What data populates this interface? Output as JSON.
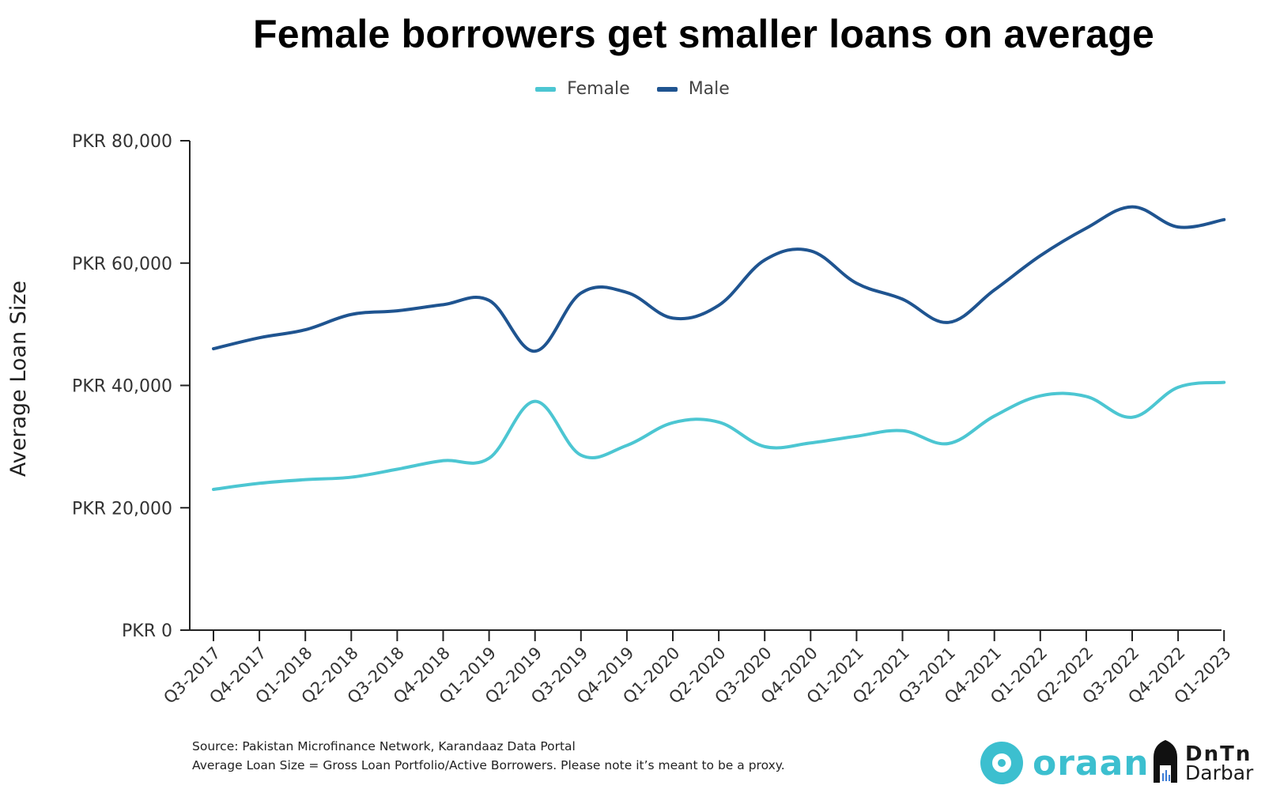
{
  "title": "Female borrowers get smaller loans on average",
  "legend": [
    {
      "label": "Female",
      "color": "#4cc6d2"
    },
    {
      "label": "Male",
      "color": "#1f5490"
    }
  ],
  "footnote": {
    "line1": "Source:  Pakistan Microfinance Network, Karandaaz Data Portal",
    "line2": "Average Loan Size = Gross Loan Portfolio/Active Borrowers. Please note it’s meant to be a proxy."
  },
  "logos": {
    "oraan": "oraan",
    "darbar_top": "DnTn",
    "darbar_bottom": "Darbar"
  },
  "chart_data": {
    "type": "line",
    "title": "Female borrowers get smaller loans on average",
    "xlabel": "",
    "ylabel": "Average Loan Size",
    "ylim": [
      0,
      80000
    ],
    "yticks": [
      0,
      20000,
      40000,
      60000,
      80000
    ],
    "ytick_labels": [
      "PKR 0",
      "PKR 20,000",
      "PKR 40,000",
      "PKR 60,000",
      "PKR 80,000"
    ],
    "legend_position": "top-center",
    "grid": false,
    "categories": [
      "Q3-2017",
      "Q4-2017",
      "Q1-2018",
      "Q2-2018",
      "Q3-2018",
      "Q4-2018",
      "Q1-2019",
      "Q2-2019",
      "Q3-2019",
      "Q4-2019",
      "Q1-2020",
      "Q2-2020",
      "Q3-2020",
      "Q4-2020",
      "Q1-2021",
      "Q2-2021",
      "Q3-2021",
      "Q4-2021",
      "Q1-2022",
      "Q2-2022",
      "Q3-2022",
      "Q4-2022",
      "Q1-2023"
    ],
    "series": [
      {
        "name": "Female",
        "color": "#4cc6d2",
        "values": [
          23000,
          24000,
          24600,
          25000,
          26300,
          27700,
          28100,
          37400,
          28600,
          30200,
          33900,
          34000,
          30000,
          30600,
          31700,
          32600,
          30500,
          35000,
          38300,
          38200,
          34800,
          39700,
          40500
        ]
      },
      {
        "name": "Male",
        "color": "#1f5490",
        "values": [
          46000,
          47800,
          49100,
          51600,
          52200,
          53200,
          53900,
          45600,
          55100,
          55200,
          51000,
          53100,
          60500,
          62000,
          56700,
          54100,
          50300,
          55600,
          61200,
          65700,
          69200,
          65900,
          67100
        ]
      }
    ]
  }
}
